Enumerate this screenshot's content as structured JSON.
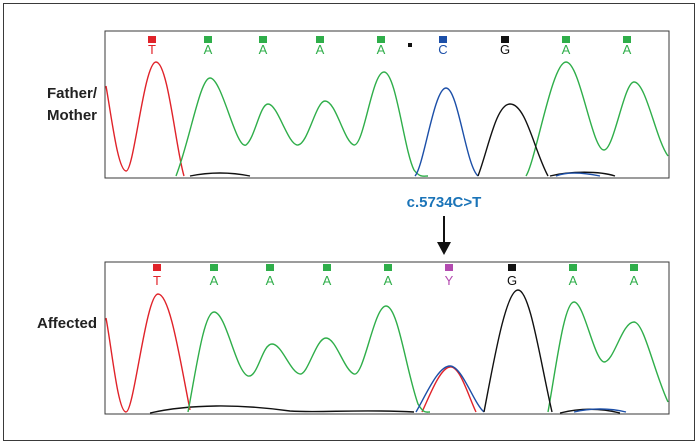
{
  "top_panel": {
    "row_label_line1": "Father/",
    "row_label_line2": "Mother",
    "bases": [
      "T",
      "A",
      "A",
      "A",
      "A",
      "C",
      "G",
      "A",
      "A"
    ],
    "marker_box_colors": [
      "#e0232a",
      "#2fae4a",
      "#2fae4a",
      "#2fae4a",
      "#2fae4a",
      "#1c4fa8",
      "#111111",
      "#2fae4a",
      "#2fae4a"
    ],
    "letter_colors": [
      "#e0232a",
      "#2fae4a",
      "#2fae4a",
      "#2fae4a",
      "#2fae4a",
      "#1c4fa8",
      "#111111",
      "#2fae4a",
      "#2fae4a"
    ],
    "extra_marker_color": "#111111"
  },
  "mutation": {
    "label": "c.5734C>T",
    "label_color": "#1b74b8"
  },
  "bottom_panel": {
    "row_label": "Affected",
    "bases": [
      "T",
      "A",
      "A",
      "A",
      "A",
      "Y",
      "G",
      "A",
      "A"
    ],
    "marker_box_colors": [
      "#e0232a",
      "#2fae4a",
      "#2fae4a",
      "#2fae4a",
      "#2fae4a",
      "#b34bb0",
      "#111111",
      "#2fae4a",
      "#2fae4a"
    ],
    "letter_colors": [
      "#e0232a",
      "#2fae4a",
      "#2fae4a",
      "#2fae4a",
      "#2fae4a",
      "#b34bb0",
      "#111111",
      "#2fae4a",
      "#2fae4a"
    ]
  },
  "trace_colors": {
    "A": "#2fae4a",
    "C": "#1c4fa8",
    "G": "#111111",
    "T": "#e0232a"
  }
}
